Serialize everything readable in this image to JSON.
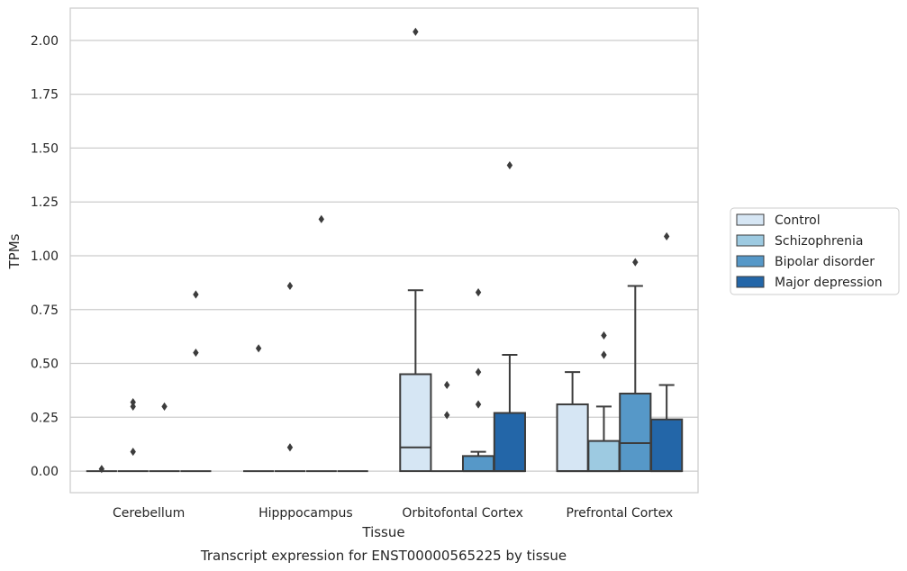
{
  "chart_data": {
    "type": "box",
    "title": "",
    "xlabel": "Tissue",
    "ylabel": "TPMs",
    "caption": "Transcript expression for ENST00000565225 by tissue",
    "ylim": [
      -0.1,
      2.15
    ],
    "yticks": [
      "0.00",
      "0.25",
      "0.50",
      "0.75",
      "1.00",
      "1.25",
      "1.50",
      "1.75",
      "2.00"
    ],
    "ytick_values": [
      0,
      0.25,
      0.5,
      0.75,
      1.0,
      1.25,
      1.5,
      1.75,
      2.0
    ],
    "grid": "horizontal",
    "legend_position": "right",
    "categories": [
      "Cerebellum",
      "Hipppocampus",
      "Orbitofontal Cortex",
      "Prefrontal Cortex"
    ],
    "series": [
      {
        "name": "Control",
        "color": "#d6e6f4",
        "boxes": [
          {
            "q1": 0,
            "median": 0,
            "q3": 0,
            "whislo": 0,
            "whishi": 0,
            "fliers": [
              0.01
            ]
          },
          {
            "q1": 0,
            "median": 0,
            "q3": 0,
            "whislo": 0,
            "whishi": 0,
            "fliers": [
              0.57
            ]
          },
          {
            "q1": 0,
            "median": 0.11,
            "q3": 0.45,
            "whislo": 0,
            "whishi": 0.84,
            "fliers": [
              2.04
            ]
          },
          {
            "q1": 0,
            "median": 0,
            "q3": 0.31,
            "whislo": 0,
            "whishi": 0.46,
            "fliers": []
          }
        ]
      },
      {
        "name": "Schizophrenia",
        "color": "#9dcae1",
        "boxes": [
          {
            "q1": 0,
            "median": 0,
            "q3": 0,
            "whislo": 0,
            "whishi": 0,
            "fliers": [
              0.09,
              0.3,
              0.32
            ]
          },
          {
            "q1": 0,
            "median": 0,
            "q3": 0,
            "whislo": 0,
            "whishi": 0,
            "fliers": [
              0.11,
              0.86
            ]
          },
          {
            "q1": 0,
            "median": 0,
            "q3": 0,
            "whislo": 0,
            "whishi": 0,
            "fliers": [
              0.26,
              0.4
            ]
          },
          {
            "q1": 0,
            "median": 0,
            "q3": 0.14,
            "whislo": 0,
            "whishi": 0.3,
            "fliers": [
              0.54,
              0.63
            ]
          }
        ]
      },
      {
        "name": "Bipolar disorder",
        "color": "#5698c8",
        "boxes": [
          {
            "q1": 0,
            "median": 0,
            "q3": 0,
            "whislo": 0,
            "whishi": 0,
            "fliers": [
              0.3
            ]
          },
          {
            "q1": 0,
            "median": 0,
            "q3": 0,
            "whislo": 0,
            "whishi": 0,
            "fliers": [
              1.17
            ]
          },
          {
            "q1": 0,
            "median": 0,
            "q3": 0.07,
            "whislo": 0,
            "whishi": 0.09,
            "fliers": [
              0.31,
              0.46,
              0.83
            ]
          },
          {
            "q1": 0,
            "median": 0.13,
            "q3": 0.36,
            "whislo": 0,
            "whishi": 0.86,
            "fliers": [
              0.97
            ]
          }
        ]
      },
      {
        "name": "Major depression",
        "color": "#2366a8",
        "boxes": [
          {
            "q1": 0,
            "median": 0,
            "q3": 0,
            "whislo": 0,
            "whishi": 0,
            "fliers": [
              0.55,
              0.82
            ]
          },
          {
            "q1": 0,
            "median": 0,
            "q3": 0,
            "whislo": 0,
            "whishi": 0,
            "fliers": []
          },
          {
            "q1": 0,
            "median": 0,
            "q3": 0.27,
            "whislo": 0,
            "whishi": 0.54,
            "fliers": [
              1.42
            ]
          },
          {
            "q1": 0,
            "median": 0,
            "q3": 0.24,
            "whislo": 0,
            "whishi": 0.4,
            "fliers": [
              1.09
            ]
          }
        ]
      }
    ]
  }
}
